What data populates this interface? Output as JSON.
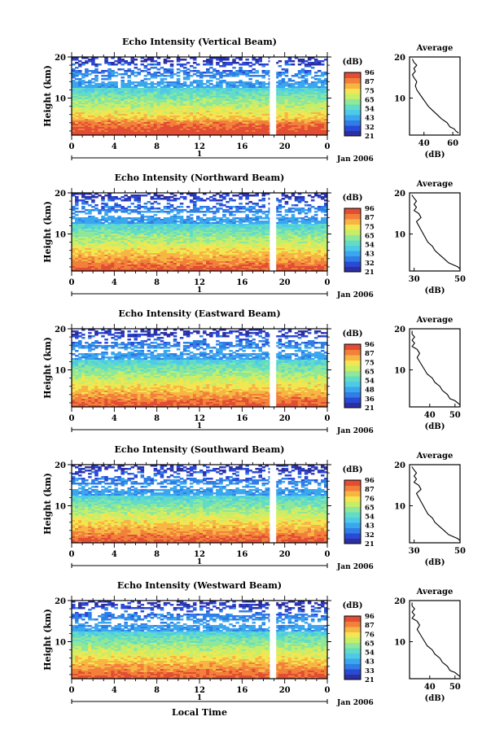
{
  "figure": {
    "xlabel": "Local Time",
    "date_label": "Jan 2006",
    "day_label": "1",
    "cb_unit": "(dB)",
    "ylabel": "Height (km)",
    "avg_title": "Average",
    "avg_xlabel": "(dB)"
  },
  "colormap": [
    "#2c2fa0",
    "#2a49d6",
    "#2f7ee6",
    "#3aa6ee",
    "#4ec9e8",
    "#63dcc6",
    "#8fe79a",
    "#c6ee6a",
    "#f3e650",
    "#f7b544",
    "#f2803a",
    "#e24d33"
  ],
  "chart_data": [
    {
      "type": "heatmap",
      "title": "Echo Intensity (Vertical Beam)",
      "xlabel": "Local Time",
      "ylabel": "Height (km)",
      "x_ticks": [
        "0",
        "4",
        "8",
        "12",
        "16",
        "20",
        "0"
      ],
      "xlim": [
        0,
        24
      ],
      "y_ticks": [
        "10",
        "20"
      ],
      "ylim": [
        1,
        20
      ],
      "colorbar": {
        "label": "(dB)",
        "ticks": [
          "96",
          "87",
          "75",
          "65",
          "54",
          "43",
          "32",
          "21"
        ]
      },
      "data_gap_hours": [
        18.6,
        19.2
      ],
      "average": {
        "title": "Average",
        "xlabel": "(dB)",
        "x_ticks": [
          "40",
          "60"
        ],
        "xlim": [
          30,
          65
        ],
        "y_ticks": [
          "10",
          "20"
        ],
        "profile": [
          [
            64,
            1.5
          ],
          [
            62,
            2
          ],
          [
            61,
            2.5
          ],
          [
            58,
            3
          ],
          [
            56,
            4
          ],
          [
            52,
            5
          ],
          [
            49,
            6
          ],
          [
            46,
            7
          ],
          [
            43,
            8
          ],
          [
            41,
            9
          ],
          [
            39,
            10
          ],
          [
            37,
            11
          ],
          [
            35,
            12
          ],
          [
            34,
            13
          ],
          [
            35,
            14
          ],
          [
            33,
            15
          ],
          [
            32,
            15.7
          ],
          [
            34,
            16.5
          ],
          [
            33,
            17.2
          ],
          [
            35,
            18
          ],
          [
            33,
            18.7
          ],
          [
            32,
            19.5
          ]
        ]
      }
    },
    {
      "type": "heatmap",
      "title": "Echo Intensity (Northward Beam)",
      "xlabel": "Local Time",
      "ylabel": "Height (km)",
      "x_ticks": [
        "0",
        "4",
        "8",
        "12",
        "16",
        "20",
        "0"
      ],
      "xlim": [
        0,
        24
      ],
      "y_ticks": [
        "10",
        "20"
      ],
      "ylim": [
        1,
        20
      ],
      "colorbar": {
        "label": "(dB)",
        "ticks": [
          "96",
          "87",
          "75",
          "65",
          "54",
          "43",
          "32",
          "21"
        ]
      },
      "data_gap_hours": [
        18.6,
        19.2
      ],
      "average": {
        "title": "Average",
        "xlabel": "(dB)",
        "x_ticks": [
          "30",
          "50"
        ],
        "xlim": [
          28,
          50
        ],
        "y_ticks": [
          "10",
          "20"
        ],
        "profile": [
          [
            50,
            1.5
          ],
          [
            49,
            2
          ],
          [
            47,
            2.5
          ],
          [
            45,
            3
          ],
          [
            43,
            4
          ],
          [
            41,
            5
          ],
          [
            39,
            6
          ],
          [
            38,
            7
          ],
          [
            36,
            8
          ],
          [
            35,
            9
          ],
          [
            34,
            10
          ],
          [
            33,
            11
          ],
          [
            32,
            12
          ],
          [
            31,
            13
          ],
          [
            33,
            14
          ],
          [
            32,
            15
          ],
          [
            30,
            15.7
          ],
          [
            31,
            16.5
          ],
          [
            30,
            17.2
          ],
          [
            31,
            18
          ],
          [
            30,
            18.7
          ],
          [
            29,
            19.5
          ]
        ]
      }
    },
    {
      "type": "heatmap",
      "title": "Echo Intensity (Eastward Beam)",
      "xlabel": "Local Time",
      "ylabel": "Height (km)",
      "x_ticks": [
        "0",
        "4",
        "8",
        "12",
        "16",
        "20",
        "0"
      ],
      "xlim": [
        0,
        24
      ],
      "y_ticks": [
        "10",
        "20"
      ],
      "ylim": [
        1,
        20
      ],
      "colorbar": {
        "label": "(dB)",
        "ticks": [
          "96",
          "87",
          "75",
          "65",
          "54",
          "48",
          "36",
          "21"
        ]
      },
      "data_gap_hours": [
        18.6,
        19.2
      ],
      "average": {
        "title": "Average",
        "xlabel": "(dB)",
        "x_ticks": [
          "40",
          "50"
        ],
        "xlim": [
          32,
          52
        ],
        "y_ticks": [
          "10",
          "20"
        ],
        "profile": [
          [
            52,
            1.5
          ],
          [
            51,
            2
          ],
          [
            50,
            2.5
          ],
          [
            48,
            3
          ],
          [
            47,
            4
          ],
          [
            45,
            5
          ],
          [
            44,
            6
          ],
          [
            42,
            7
          ],
          [
            41,
            8
          ],
          [
            39,
            9
          ],
          [
            38,
            10
          ],
          [
            37,
            11
          ],
          [
            36,
            12
          ],
          [
            35,
            13
          ],
          [
            36,
            14
          ],
          [
            35,
            15
          ],
          [
            33,
            15.7
          ],
          [
            34,
            16.5
          ],
          [
            33,
            17.2
          ],
          [
            34,
            18
          ],
          [
            33,
            18.7
          ],
          [
            33,
            19.5
          ]
        ]
      }
    },
    {
      "type": "heatmap",
      "title": "Echo Intensity (Southward Beam)",
      "xlabel": "Local Time",
      "ylabel": "Height (km)",
      "x_ticks": [
        "0",
        "4",
        "8",
        "12",
        "16",
        "20",
        "0"
      ],
      "xlim": [
        0,
        24
      ],
      "y_ticks": [
        "10",
        "20"
      ],
      "ylim": [
        1,
        20
      ],
      "colorbar": {
        "label": "(dB)",
        "ticks": [
          "96",
          "87",
          "76",
          "65",
          "54",
          "43",
          "32",
          "21"
        ]
      },
      "data_gap_hours": [
        18.6,
        19.2
      ],
      "average": {
        "title": "Average",
        "xlabel": "(dB)",
        "x_ticks": [
          "30",
          "50"
        ],
        "xlim": [
          28,
          50
        ],
        "y_ticks": [
          "10",
          "20"
        ],
        "profile": [
          [
            50,
            1.5
          ],
          [
            49,
            2
          ],
          [
            47,
            2.5
          ],
          [
            45,
            3
          ],
          [
            43,
            4
          ],
          [
            41,
            5
          ],
          [
            39,
            6
          ],
          [
            38,
            7
          ],
          [
            36,
            8
          ],
          [
            35,
            9
          ],
          [
            34,
            10
          ],
          [
            33,
            11
          ],
          [
            32,
            12
          ],
          [
            31,
            13
          ],
          [
            33,
            14
          ],
          [
            32,
            15
          ],
          [
            30,
            15.7
          ],
          [
            31,
            16.5
          ],
          [
            30,
            17.2
          ],
          [
            31,
            18
          ],
          [
            30,
            18.7
          ],
          [
            29,
            19.5
          ]
        ]
      }
    },
    {
      "type": "heatmap",
      "title": "Echo Intensity (Westward Beam)",
      "xlabel": "Local Time",
      "ylabel": "Height (km)",
      "x_ticks": [
        "0",
        "4",
        "8",
        "12",
        "16",
        "20",
        "0"
      ],
      "xlim": [
        0,
        24
      ],
      "y_ticks": [
        "10",
        "20"
      ],
      "ylim": [
        1,
        20
      ],
      "colorbar": {
        "label": "(dB)",
        "ticks": [
          "96",
          "87",
          "76",
          "65",
          "54",
          "43",
          "33",
          "21"
        ]
      },
      "data_gap_hours": [
        18.6,
        19.2
      ],
      "average": {
        "title": "Average",
        "xlabel": "(dB)",
        "x_ticks": [
          "40",
          "50"
        ],
        "xlim": [
          32,
          52
        ],
        "y_ticks": [
          "10",
          "20"
        ],
        "profile": [
          [
            52,
            1.5
          ],
          [
            51,
            2
          ],
          [
            50,
            2.5
          ],
          [
            48,
            3
          ],
          [
            47,
            4
          ],
          [
            45,
            5
          ],
          [
            44,
            6
          ],
          [
            42,
            7
          ],
          [
            41,
            8
          ],
          [
            39,
            9
          ],
          [
            38,
            10
          ],
          [
            37,
            11
          ],
          [
            36,
            12
          ],
          [
            35,
            13
          ],
          [
            36,
            14
          ],
          [
            35,
            15
          ],
          [
            33,
            15.7
          ],
          [
            34,
            16.5
          ],
          [
            33,
            17.2
          ],
          [
            34,
            18
          ],
          [
            33,
            18.7
          ],
          [
            33,
            19.5
          ]
        ]
      }
    }
  ]
}
